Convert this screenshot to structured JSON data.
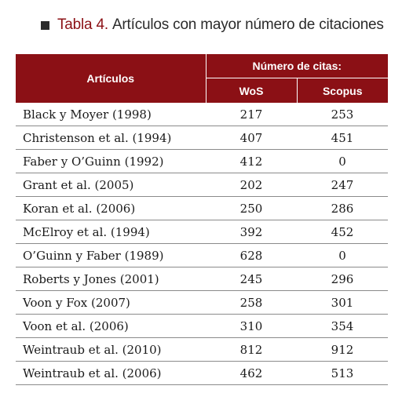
{
  "title": {
    "label": "Tabla 4.",
    "text": "Artículos con mayor número de citaciones"
  },
  "table": {
    "header_articulos": "Artículos",
    "header_group": "Número de citas:",
    "header_wos": "WoS",
    "header_scopus": "Scopus",
    "rows": [
      {
        "articulo": "Black y Moyer (1998)",
        "wos": "217",
        "scopus": "253"
      },
      {
        "articulo": "Christenson et al. (1994)",
        "wos": "407",
        "scopus": "451"
      },
      {
        "articulo": "Faber y O’Guinn (1992)",
        "wos": "412",
        "scopus": "0"
      },
      {
        "articulo": "Grant et al. (2005)",
        "wos": "202",
        "scopus": "247"
      },
      {
        "articulo": "Koran et al. (2006)",
        "wos": "250",
        "scopus": "286"
      },
      {
        "articulo": "McElroy et al. (1994)",
        "wos": "392",
        "scopus": "452"
      },
      {
        "articulo": "O’Guinn y Faber (1989)",
        "wos": "628",
        "scopus": "0"
      },
      {
        "articulo": "Roberts y Jones (2001)",
        "wos": "245",
        "scopus": "296"
      },
      {
        "articulo": "Voon y Fox (2007)",
        "wos": "258",
        "scopus": "301"
      },
      {
        "articulo": "Voon et al. (2006)",
        "wos": "310",
        "scopus": "354"
      },
      {
        "articulo": "Weintraub et al. (2010)",
        "wos": "812",
        "scopus": "912"
      },
      {
        "articulo": "Weintraub et al. (2006)",
        "wos": "462",
        "scopus": "513"
      }
    ]
  },
  "colors": {
    "header_bg": "#8b1015",
    "title_accent": "#8b1015",
    "row_divider": "#8a8a8a"
  }
}
